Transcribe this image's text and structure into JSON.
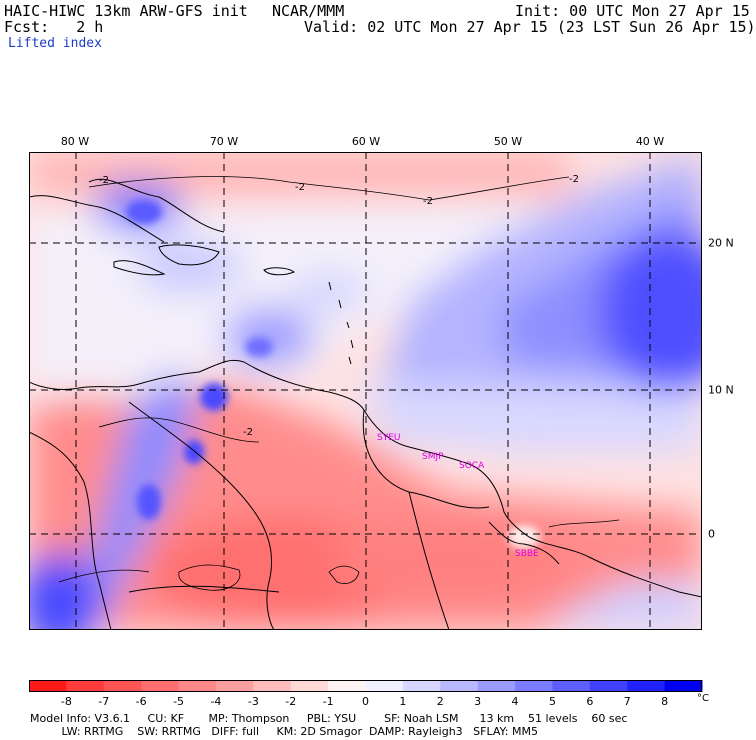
{
  "header": {
    "model": "HAIC-HIWC 13km ARW-GFS init",
    "org": "NCAR/MMM",
    "init": "Init: 00 UTC Mon 27 Apr 15",
    "fcst": "Fcst:   2 h",
    "valid": "Valid: 02 UTC Mon 27 Apr 15 (23 LST Sun 26 Apr 15)",
    "field": "Lifted index"
  },
  "map": {
    "lon_labels": [
      "80 W",
      "70 W",
      "60 W",
      "50 W",
      "40 W"
    ],
    "lat_labels": [
      "20 N",
      "10 N",
      "0"
    ],
    "contour_labels": [
      "-2",
      "-2",
      "-2",
      "-2",
      "-2"
    ],
    "stations": [
      "SYEU",
      "SMJP",
      "SOCA",
      "SBBE"
    ],
    "colors": {
      "grid": "#000000",
      "coast": "#000000",
      "station": "#e000e0"
    }
  },
  "legend": {
    "ticks": [
      "-8",
      "-7",
      "-6",
      "-5",
      "-4",
      "-3",
      "-2",
      "-1",
      "0",
      "1",
      "2",
      "3",
      "4",
      "5",
      "6",
      "7",
      "8"
    ],
    "unit": "°C",
    "colors": [
      "#ff1a1a",
      "#ff3c3c",
      "#ff5555",
      "#ff6e6e",
      "#ff8888",
      "#ffa0a0",
      "#ffbcbc",
      "#ffd8d8",
      "#fff2f2",
      "#f0f0ff",
      "#d6d6ff",
      "#b8b8ff",
      "#9a9aff",
      "#7c7cff",
      "#5e5eff",
      "#4040ff",
      "#2222ff",
      "#0000f0"
    ]
  },
  "footer": {
    "line1": "Model Info: V3.6.1     CU: KF       MP: Thompson     PBL: YSU        SF: Noah LSM      13 km    51 levels    60 sec",
    "line2": "         LW: RRTMG    SW: RRTMG   DIFF: full     KM: 2D Smagor  DAMP: Rayleigh3   SFLAY: MM5"
  }
}
